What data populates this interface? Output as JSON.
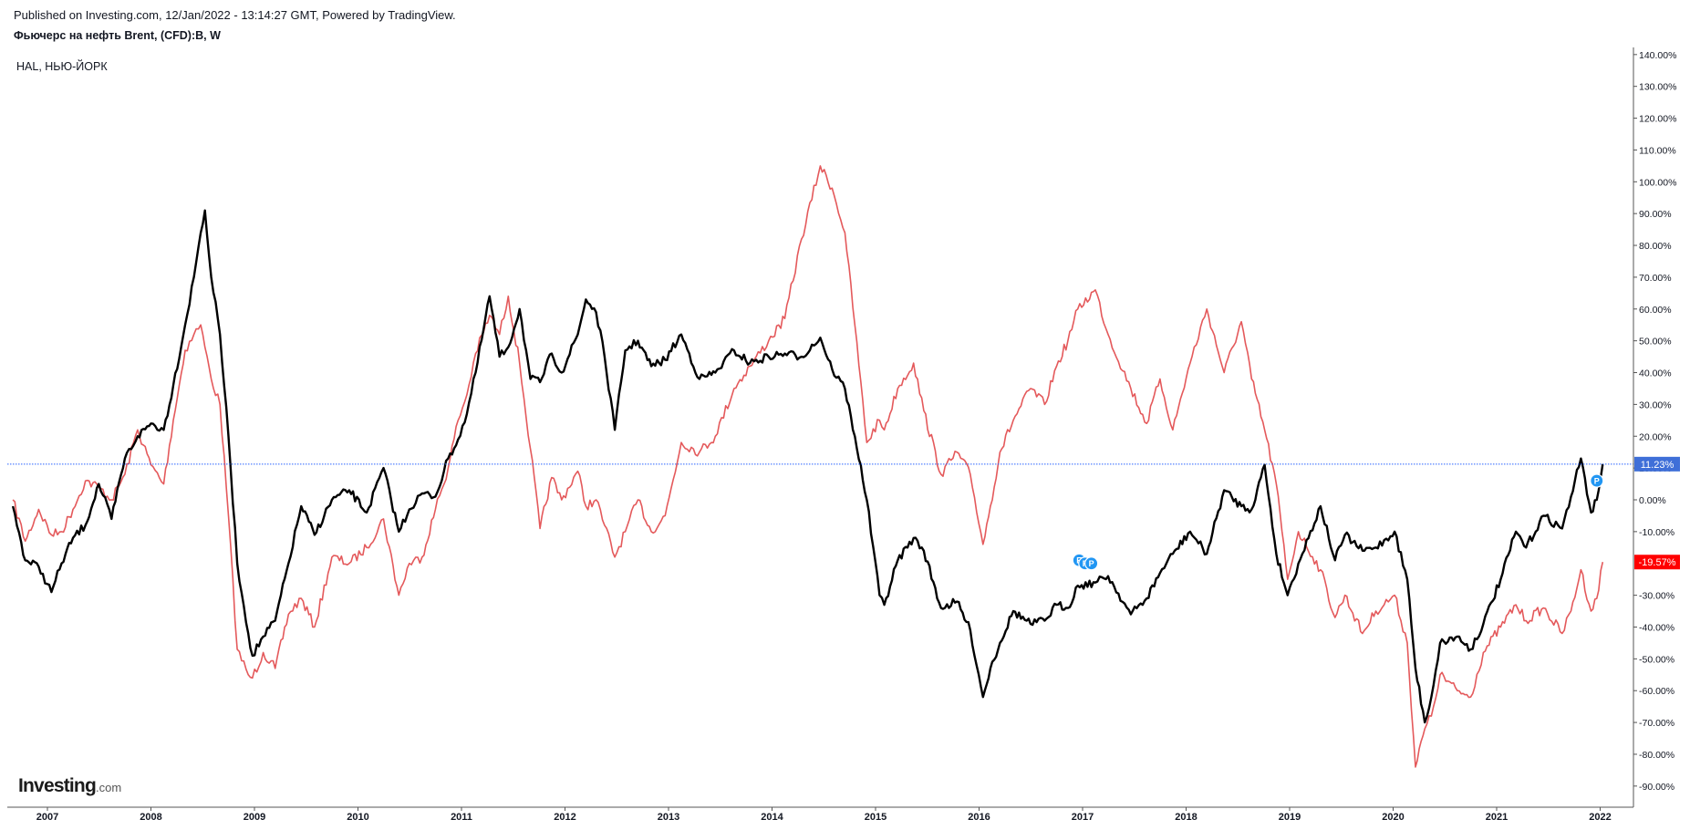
{
  "header": {
    "published": "Published on Investing.com, 12/Jan/2022 - 13:14:27 GMT, Powered by TradingView.",
    "symbol_title": "Фьючерс на нефть Brent, (CFD):B, W",
    "compare_label": "HAL, НЬЮ-ЙОРК"
  },
  "logo": {
    "brand": "Investing",
    "suffix": ".com"
  },
  "colors": {
    "primary_series": "#000000",
    "compare_series": "#e4595b",
    "last_value_line": "#2962ff",
    "primary_badge": "#3f6fd8",
    "compare_badge": "#ff0000",
    "marker": "#2196f3"
  },
  "chart_data": {
    "type": "line",
    "xlim": [
      "2006-09",
      "2022-01"
    ],
    "ylim": [
      -97,
      143
    ],
    "y_unit": "%",
    "y_ticks": [
      140,
      130,
      120,
      110,
      100,
      90,
      80,
      70,
      60,
      50,
      40,
      30,
      20,
      10,
      0,
      -10,
      -30,
      -40,
      -50,
      -60,
      -70,
      -80,
      -90
    ],
    "y_tick_labels": [
      "140.00%",
      "130.00%",
      "120.00%",
      "110.00%",
      "100.00%",
      "90.00%",
      "80.00%",
      "70.00%",
      "60.00%",
      "50.00%",
      "40.00%",
      "30.00%",
      "20.00%",
      "10.00%",
      "0.00%",
      "-10.00%",
      "-30.00%",
      "-40.00%",
      "-50.00%",
      "-60.00%",
      "-70.00%",
      "-80.00%",
      "-90.00%"
    ],
    "x_ticks": [
      "2007",
      "2008",
      "2009",
      "2010",
      "2011",
      "2012",
      "2013",
      "2014",
      "2015",
      "2016",
      "2017",
      "2018",
      "2019",
      "2020",
      "2021",
      "2022"
    ],
    "grid": false,
    "series": [
      {
        "name": "Фьючерс на нефть Brent, (CFD):B, W",
        "color": "#000000",
        "width": 2.4,
        "last_value_label": "11.23%",
        "points": [
          [
            "2006-09-01",
            -2
          ],
          [
            "2006-10-15",
            -19
          ],
          [
            "2006-12-01",
            -21
          ],
          [
            "2007-01-15",
            -29
          ],
          [
            "2007-02-20",
            -20
          ],
          [
            "2007-04-01",
            -12
          ],
          [
            "2007-05-15",
            -8
          ],
          [
            "2007-07-01",
            5
          ],
          [
            "2007-08-15",
            -6
          ],
          [
            "2007-10-01",
            13
          ],
          [
            "2007-11-15",
            20
          ],
          [
            "2008-01-01",
            24
          ],
          [
            "2008-02-15",
            22
          ],
          [
            "2008-03-20",
            36
          ],
          [
            "2008-05-01",
            55
          ],
          [
            "2008-06-01",
            70
          ],
          [
            "2008-06-25",
            84
          ],
          [
            "2008-07-10",
            91
          ],
          [
            "2008-08-01",
            70
          ],
          [
            "2008-09-01",
            52
          ],
          [
            "2008-10-01",
            20
          ],
          [
            "2008-11-01",
            -20
          ],
          [
            "2008-12-10",
            -42
          ],
          [
            "2008-12-25",
            -49
          ],
          [
            "2009-02-01",
            -43
          ],
          [
            "2009-03-15",
            -38
          ],
          [
            "2009-05-01",
            -20
          ],
          [
            "2009-06-15",
            -2
          ],
          [
            "2009-08-01",
            -11
          ],
          [
            "2009-10-01",
            0
          ],
          [
            "2009-12-01",
            3
          ],
          [
            "2010-02-01",
            -4
          ],
          [
            "2010-04-01",
            10
          ],
          [
            "2010-05-25",
            -10
          ],
          [
            "2010-07-01",
            -3
          ],
          [
            "2010-08-15",
            2
          ],
          [
            "2010-10-01",
            1
          ],
          [
            "2010-11-15",
            13
          ],
          [
            "2010-12-20",
            19
          ],
          [
            "2011-01-20",
            27
          ],
          [
            "2011-02-20",
            40
          ],
          [
            "2011-04-10",
            64
          ],
          [
            "2011-05-15",
            45
          ],
          [
            "2011-06-15",
            48
          ],
          [
            "2011-07-25",
            60
          ],
          [
            "2011-09-01",
            38
          ],
          [
            "2011-10-05",
            37
          ],
          [
            "2011-11-15",
            46
          ],
          [
            "2011-12-20",
            40
          ],
          [
            "2012-02-15",
            52
          ],
          [
            "2012-03-15",
            63
          ],
          [
            "2012-04-20",
            59
          ],
          [
            "2012-05-20",
            45
          ],
          [
            "2012-06-25",
            22
          ],
          [
            "2012-08-01",
            47
          ],
          [
            "2012-09-15",
            50
          ],
          [
            "2012-11-01",
            42
          ],
          [
            "2012-12-20",
            44
          ],
          [
            "2013-02-15",
            52
          ],
          [
            "2013-04-20",
            38
          ],
          [
            "2013-06-15",
            40
          ],
          [
            "2013-08-20",
            47
          ],
          [
            "2013-10-15",
            43
          ],
          [
            "2013-12-20",
            45
          ],
          [
            "2014-02-15",
            46
          ],
          [
            "2014-04-15",
            45
          ],
          [
            "2014-06-20",
            51
          ],
          [
            "2014-08-01",
            41
          ],
          [
            "2014-09-15",
            35
          ],
          [
            "2014-10-20",
            20
          ],
          [
            "2014-12-01",
            0
          ],
          [
            "2015-01-15",
            -30
          ],
          [
            "2015-02-01",
            -33
          ],
          [
            "2015-03-20",
            -19
          ],
          [
            "2015-05-15",
            -12
          ],
          [
            "2015-06-20",
            -16
          ],
          [
            "2015-08-20",
            -34
          ],
          [
            "2015-10-15",
            -32
          ],
          [
            "2015-12-01",
            -41
          ],
          [
            "2016-01-15",
            -62
          ],
          [
            "2016-02-10",
            -53
          ],
          [
            "2016-03-15",
            -45
          ],
          [
            "2016-05-01",
            -35
          ],
          [
            "2016-07-01",
            -39
          ],
          [
            "2016-08-20",
            -38
          ],
          [
            "2016-10-01",
            -33
          ],
          [
            "2016-11-10",
            -34
          ],
          [
            "2016-12-15",
            -27
          ],
          [
            "2017-02-15",
            -26
          ],
          [
            "2017-04-01",
            -24
          ],
          [
            "2017-06-20",
            -36
          ],
          [
            "2017-08-15",
            -31
          ],
          [
            "2017-10-01",
            -23
          ],
          [
            "2017-11-15",
            -17
          ],
          [
            "2018-01-15",
            -10
          ],
          [
            "2018-03-15",
            -17
          ],
          [
            "2018-05-15",
            3
          ],
          [
            "2018-07-15",
            -2
          ],
          [
            "2018-08-20",
            -3
          ],
          [
            "2018-10-05",
            11
          ],
          [
            "2018-11-15",
            -17
          ],
          [
            "2018-12-25",
            -30
          ],
          [
            "2019-02-01",
            -20
          ],
          [
            "2019-04-20",
            -2
          ],
          [
            "2019-06-10",
            -19
          ],
          [
            "2019-07-15",
            -11
          ],
          [
            "2019-09-15",
            -16
          ],
          [
            "2019-11-01",
            -15
          ],
          [
            "2020-01-06",
            -10
          ],
          [
            "2020-02-20",
            -25
          ],
          [
            "2020-03-20",
            -53
          ],
          [
            "2020-04-22",
            -70
          ],
          [
            "2020-05-15",
            -62
          ],
          [
            "2020-06-15",
            -45
          ],
          [
            "2020-08-15",
            -43
          ],
          [
            "2020-10-01",
            -47
          ],
          [
            "2020-11-15",
            -39
          ],
          [
            "2021-01-15",
            -25
          ],
          [
            "2021-03-10",
            -10
          ],
          [
            "2021-04-15",
            -15
          ],
          [
            "2021-06-15",
            -5
          ],
          [
            "2021-08-20",
            -9
          ],
          [
            "2021-09-20",
            1
          ],
          [
            "2021-10-25",
            13
          ],
          [
            "2021-11-30",
            -4
          ],
          [
            "2021-12-20",
            0
          ],
          [
            "2022-01-10",
            11.23
          ]
        ]
      },
      {
        "name": "HAL, НЬЮ-ЙОРК",
        "color": "#e4595b",
        "width": 1.6,
        "last_value_label": "-19.57%",
        "points": [
          [
            "2006-09-01",
            0
          ],
          [
            "2006-10-15",
            -13
          ],
          [
            "2006-12-01",
            -3
          ],
          [
            "2007-01-15",
            -11
          ],
          [
            "2007-02-20",
            -10
          ],
          [
            "2007-04-01",
            -3
          ],
          [
            "2007-05-15",
            6
          ],
          [
            "2007-07-01",
            4
          ],
          [
            "2007-08-15",
            0
          ],
          [
            "2007-10-01",
            8
          ],
          [
            "2007-11-15",
            22
          ],
          [
            "2008-01-01",
            11
          ],
          [
            "2008-02-15",
            5
          ],
          [
            "2008-03-20",
            25
          ],
          [
            "2008-05-01",
            47
          ],
          [
            "2008-06-01",
            52
          ],
          [
            "2008-06-25",
            55
          ],
          [
            "2008-07-10",
            48
          ],
          [
            "2008-08-01",
            38
          ],
          [
            "2008-09-01",
            30
          ],
          [
            "2008-10-01",
            -5
          ],
          [
            "2008-11-01",
            -47
          ],
          [
            "2008-12-10",
            -55
          ],
          [
            "2008-12-25",
            -56
          ],
          [
            "2009-02-01",
            -48
          ],
          [
            "2009-03-15",
            -53
          ],
          [
            "2009-05-01",
            -36
          ],
          [
            "2009-06-15",
            -31
          ],
          [
            "2009-08-01",
            -40
          ],
          [
            "2009-10-01",
            -18
          ],
          [
            "2009-12-01",
            -20
          ],
          [
            "2010-02-01",
            -15
          ],
          [
            "2010-04-01",
            -6
          ],
          [
            "2010-05-25",
            -30
          ],
          [
            "2010-07-01",
            -20
          ],
          [
            "2010-08-15",
            -18
          ],
          [
            "2010-10-01",
            -3
          ],
          [
            "2010-11-15",
            10
          ],
          [
            "2010-12-20",
            25
          ],
          [
            "2011-01-20",
            33
          ],
          [
            "2011-02-20",
            46
          ],
          [
            "2011-04-10",
            58
          ],
          [
            "2011-05-15",
            52
          ],
          [
            "2011-06-15",
            64
          ],
          [
            "2011-07-25",
            43
          ],
          [
            "2011-09-01",
            16
          ],
          [
            "2011-10-05",
            -9
          ],
          [
            "2011-11-15",
            7
          ],
          [
            "2011-12-20",
            0
          ],
          [
            "2012-02-15",
            9
          ],
          [
            "2012-03-15",
            -2
          ],
          [
            "2012-04-20",
            0
          ],
          [
            "2012-05-20",
            -8
          ],
          [
            "2012-06-25",
            -18
          ],
          [
            "2012-08-01",
            -10
          ],
          [
            "2012-09-15",
            0
          ],
          [
            "2012-11-01",
            -10
          ],
          [
            "2012-12-20",
            -5
          ],
          [
            "2013-02-15",
            18
          ],
          [
            "2013-04-20",
            15
          ],
          [
            "2013-06-15",
            20
          ],
          [
            "2013-08-20",
            35
          ],
          [
            "2013-10-15",
            42
          ],
          [
            "2013-12-20",
            50
          ],
          [
            "2014-02-15",
            57
          ],
          [
            "2014-04-15",
            82
          ],
          [
            "2014-06-20",
            105
          ],
          [
            "2014-08-01",
            98
          ],
          [
            "2014-09-15",
            84
          ],
          [
            "2014-10-20",
            55
          ],
          [
            "2014-12-01",
            18
          ],
          [
            "2015-01-15",
            25
          ],
          [
            "2015-02-01",
            22
          ],
          [
            "2015-03-20",
            35
          ],
          [
            "2015-05-15",
            43
          ],
          [
            "2015-06-20",
            28
          ],
          [
            "2015-08-20",
            8
          ],
          [
            "2015-10-15",
            15
          ],
          [
            "2015-12-01",
            8
          ],
          [
            "2016-01-15",
            -14
          ],
          [
            "2016-02-10",
            -2
          ],
          [
            "2016-03-15",
            15
          ],
          [
            "2016-05-01",
            25
          ],
          [
            "2016-07-01",
            35
          ],
          [
            "2016-08-20",
            30
          ],
          [
            "2016-10-01",
            42
          ],
          [
            "2016-11-10",
            50
          ],
          [
            "2016-12-15",
            60
          ],
          [
            "2017-02-15",
            66
          ],
          [
            "2017-04-01",
            52
          ],
          [
            "2017-06-20",
            35
          ],
          [
            "2017-08-15",
            24
          ],
          [
            "2017-10-01",
            38
          ],
          [
            "2017-11-15",
            22
          ],
          [
            "2018-01-15",
            43
          ],
          [
            "2018-03-15",
            60
          ],
          [
            "2018-05-15",
            40
          ],
          [
            "2018-07-15",
            56
          ],
          [
            "2018-08-20",
            38
          ],
          [
            "2018-10-05",
            22
          ],
          [
            "2018-11-15",
            5
          ],
          [
            "2018-12-25",
            -25
          ],
          [
            "2019-02-01",
            -10
          ],
          [
            "2019-04-20",
            -22
          ],
          [
            "2019-06-10",
            -37
          ],
          [
            "2019-07-15",
            -30
          ],
          [
            "2019-09-15",
            -42
          ],
          [
            "2019-11-01",
            -35
          ],
          [
            "2020-01-06",
            -30
          ],
          [
            "2020-02-20",
            -45
          ],
          [
            "2020-03-20",
            -84
          ],
          [
            "2020-04-22",
            -72
          ],
          [
            "2020-05-15",
            -68
          ],
          [
            "2020-06-15",
            -55
          ],
          [
            "2020-08-15",
            -60
          ],
          [
            "2020-10-01",
            -62
          ],
          [
            "2020-11-15",
            -48
          ],
          [
            "2021-01-15",
            -40
          ],
          [
            "2021-03-10",
            -33
          ],
          [
            "2021-04-15",
            -38
          ],
          [
            "2021-06-15",
            -34
          ],
          [
            "2021-08-20",
            -42
          ],
          [
            "2021-09-20",
            -35
          ],
          [
            "2021-10-25",
            -22
          ],
          [
            "2021-11-30",
            -35
          ],
          [
            "2021-12-20",
            -31
          ],
          [
            "2022-01-10",
            -19.57
          ]
        ]
      }
    ],
    "markers": [
      {
        "date": "2016-12-20",
        "value": -19,
        "label": "E"
      },
      {
        "date": "2017-01-10",
        "value": -20,
        "label": "P"
      },
      {
        "date": "2017-02-01",
        "value": -20,
        "label": "P"
      },
      {
        "date": "2021-12-20",
        "value": 6,
        "label": "P"
      }
    ]
  }
}
